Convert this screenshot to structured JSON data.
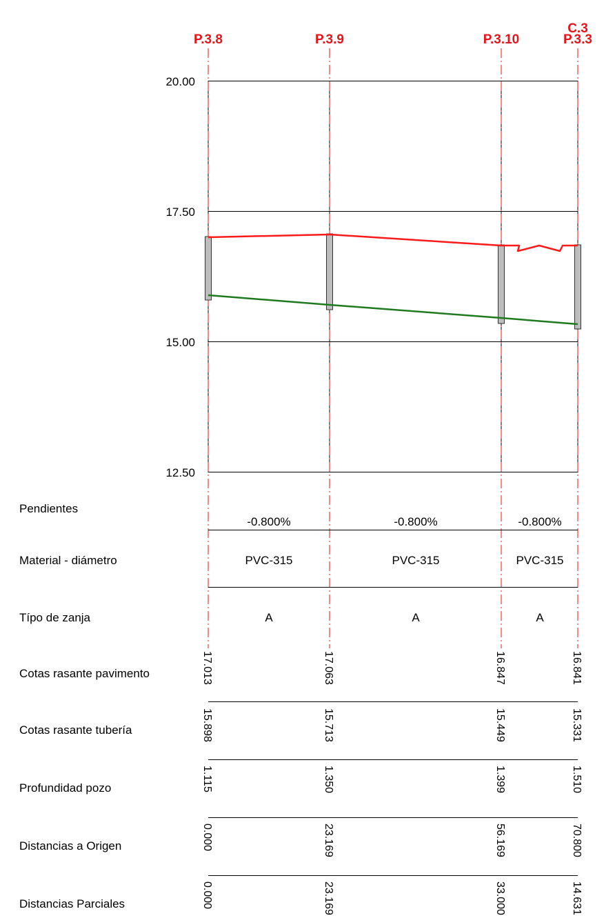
{
  "wells": [
    {
      "name": "P.3.8",
      "cota_pavimento": "17.013",
      "cota_tuberia": "15.898",
      "profundidad": "1.115",
      "dist_origen": "0.000",
      "dist_parcial": "0.000"
    },
    {
      "name": "P.3.9",
      "cota_pavimento": "17.063",
      "cota_tuberia": "15.713",
      "profundidad": "1.350",
      "dist_origen": "23.169",
      "dist_parcial": "23.169"
    },
    {
      "name": "P.3.10",
      "cota_pavimento": "16.847",
      "cota_tuberia": "15.449",
      "profundidad": "1.399",
      "dist_origen": "56.169",
      "dist_parcial": "33.000"
    },
    {
      "name": "P.3.3",
      "extra_label": "C.3",
      "cota_pavimento": "16.841",
      "cota_tuberia": "15.331",
      "profundidad": "1.510",
      "dist_origen": "70.800",
      "dist_parcial": "14.631"
    }
  ],
  "y_axis": {
    "ticks": [
      "20.00",
      "17.50",
      "15.00",
      "12.50"
    ],
    "ylim": [
      12.5,
      20.0
    ]
  },
  "segments": [
    {
      "pendiente": "-0.800%",
      "material": "PVC-315",
      "zanja": "A"
    },
    {
      "pendiente": "-0.800%",
      "material": "PVC-315",
      "zanja": "A"
    },
    {
      "pendiente": "-0.800%",
      "material": "PVC-315",
      "zanja": "A"
    }
  ],
  "row_labels": {
    "pendientes": "Pendientes",
    "material": "Material - diámetro",
    "zanja": "Típo de zanja",
    "cota_pavimento": "Cotas rasante pavimento",
    "cota_tuberia": "Cotas rasante tubería",
    "profundidad": "Profundidad pozo",
    "dist_origen": "Distancias a Origen",
    "dist_parcial": "Distancias Parciales"
  },
  "colors": {
    "terrain": "#ff1a1a",
    "pipe": "#1f7a1f",
    "well_axis": "#e8141b",
    "grid": "#000000",
    "well_fill": "#bdbdbd"
  }
}
